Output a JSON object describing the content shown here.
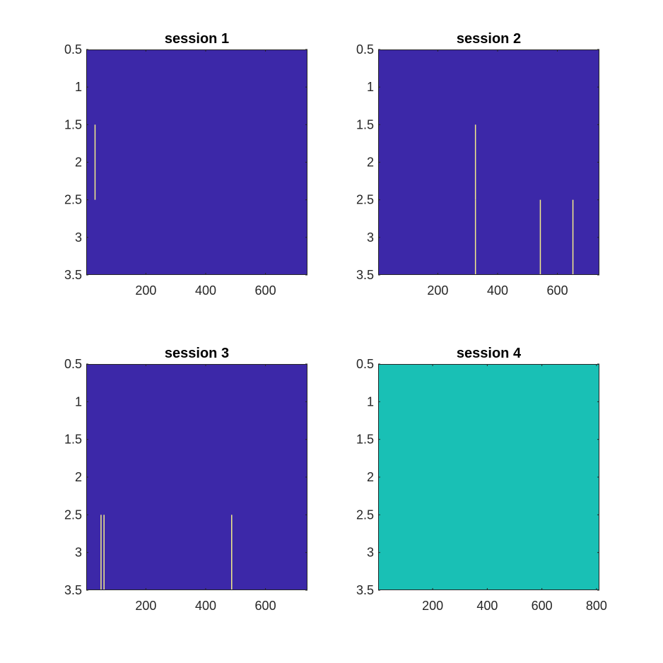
{
  "chart_data": [
    {
      "type": "heatmap",
      "title": "session 1",
      "xlim": [
        0.5,
        740.5
      ],
      "ylim": [
        0.5,
        3.5
      ],
      "y_reversed": true,
      "xticks": [
        200,
        400,
        600
      ],
      "xtick_labels": [
        "200",
        "400",
        "600"
      ],
      "yticks": [
        0.5,
        1,
        1.5,
        2,
        2.5,
        3,
        3.5
      ],
      "ytick_labels": [
        "0.5",
        "1",
        "1.5",
        "2",
        "2.5",
        "3",
        "3.5"
      ],
      "background_color": "#3c28a8",
      "marks": [
        {
          "x": 30,
          "rows": [
            2
          ],
          "color": "#f5ee8a"
        }
      ]
    },
    {
      "type": "heatmap",
      "title": "session 2",
      "xlim": [
        0.5,
        740.5
      ],
      "ylim": [
        0.5,
        3.5
      ],
      "y_reversed": true,
      "xticks": [
        200,
        400,
        600
      ],
      "xtick_labels": [
        "200",
        "400",
        "600"
      ],
      "yticks": [
        0.5,
        1,
        1.5,
        2,
        2.5,
        3,
        3.5
      ],
      "ytick_labels": [
        "0.5",
        "1",
        "1.5",
        "2",
        "2.5",
        "3",
        "3.5"
      ],
      "background_color": "#3c28a8",
      "marks": [
        {
          "x": 326,
          "rows": [
            2,
            3
          ],
          "color": "#f5ee8a"
        },
        {
          "x": 543,
          "rows": [
            3
          ],
          "color": "#f5ee8a"
        },
        {
          "x": 652,
          "rows": [
            3
          ],
          "color": "#f5ee8a"
        }
      ]
    },
    {
      "type": "heatmap",
      "title": "session 3",
      "xlim": [
        0.5,
        740.5
      ],
      "ylim": [
        0.5,
        3.5
      ],
      "y_reversed": true,
      "xticks": [
        200,
        400,
        600
      ],
      "xtick_labels": [
        "200",
        "400",
        "600"
      ],
      "yticks": [
        0.5,
        1,
        1.5,
        2,
        2.5,
        3,
        3.5
      ],
      "ytick_labels": [
        "0.5",
        "1",
        "1.5",
        "2",
        "2.5",
        "3",
        "3.5"
      ],
      "background_color": "#3c28a8",
      "marks": [
        {
          "x": 50,
          "rows": [
            3
          ],
          "color": "#f5ee8a"
        },
        {
          "x": 60,
          "rows": [
            3
          ],
          "color": "#f5ee8a"
        },
        {
          "x": 487,
          "rows": [
            3
          ],
          "color": "#f5ee8a"
        }
      ]
    },
    {
      "type": "heatmap",
      "title": "session 4",
      "xlim": [
        0.5,
        810.5
      ],
      "ylim": [
        0.5,
        3.5
      ],
      "y_reversed": true,
      "xticks": [
        200,
        400,
        600,
        800
      ],
      "xtick_labels": [
        "200",
        "400",
        "600",
        "800"
      ],
      "yticks": [
        0.5,
        1,
        1.5,
        2,
        2.5,
        3,
        3.5
      ],
      "ytick_labels": [
        "0.5",
        "1",
        "1.5",
        "2",
        "2.5",
        "3",
        "3.5"
      ],
      "background_color": "#19c0b5",
      "marks": []
    }
  ]
}
